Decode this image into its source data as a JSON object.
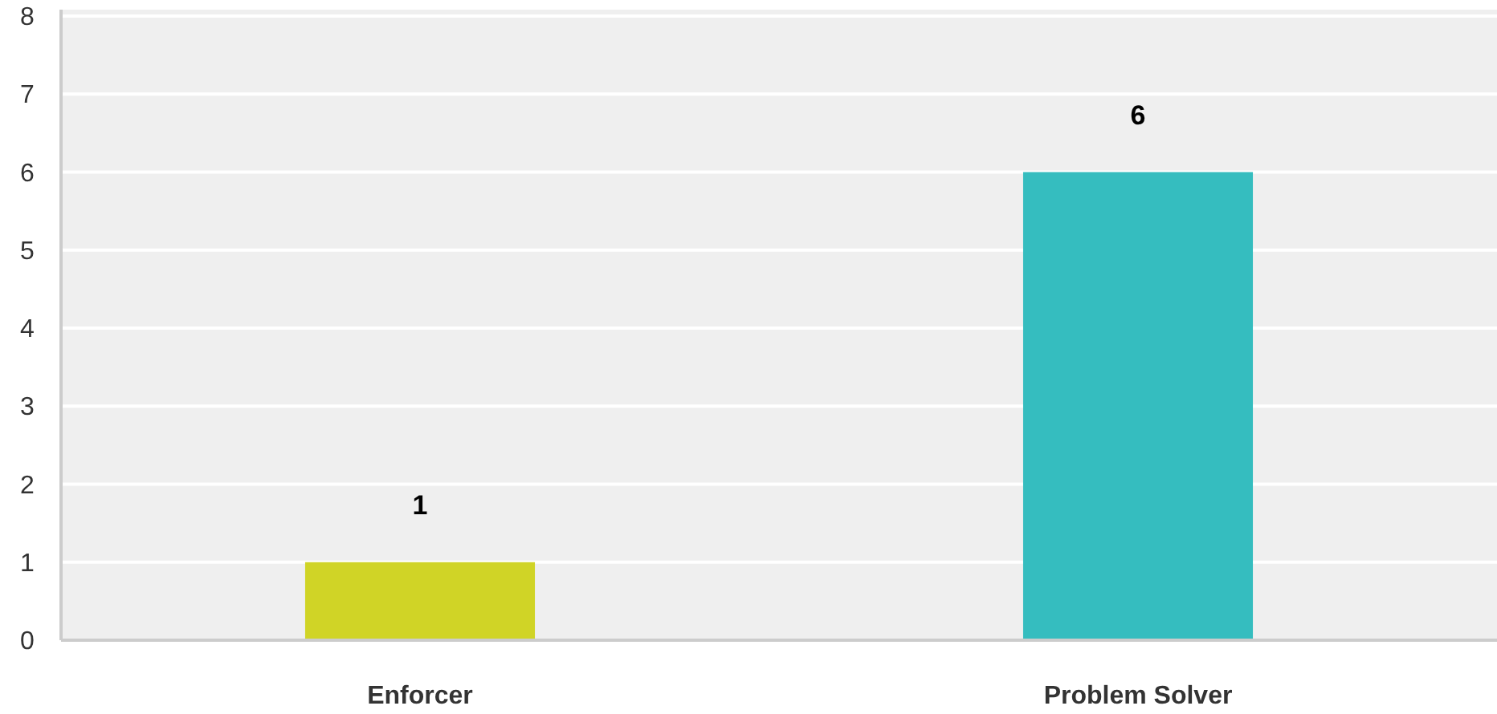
{
  "chart_data": {
    "type": "bar",
    "categories": [
      "Enforcer",
      "Problem Solver"
    ],
    "values": [
      1,
      6
    ],
    "colors": [
      "#d0d426",
      "#35bdbf"
    ],
    "ylim": [
      0,
      8
    ],
    "yticks": [
      0,
      1,
      2,
      3,
      4,
      5,
      6,
      7,
      8
    ],
    "grid": "y",
    "data_labels": true
  }
}
